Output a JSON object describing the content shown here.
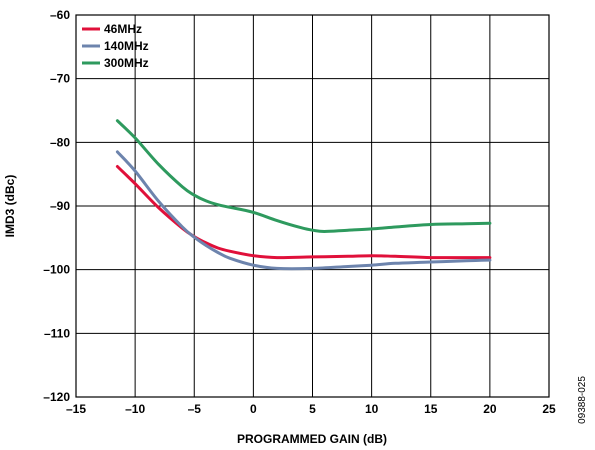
{
  "chart_data": {
    "type": "line",
    "xlabel": "PROGRAMMED GAIN (dB)",
    "ylabel": "IMD3 (dBc)",
    "xlim": [
      -15,
      25
    ],
    "ylim": [
      -120,
      -60
    ],
    "xticks": [
      -15,
      -10,
      -5,
      0,
      5,
      10,
      15,
      20,
      25
    ],
    "yticks": [
      -60,
      -70,
      -80,
      -90,
      -100,
      -110,
      -120
    ],
    "xtick_labels": [
      "–15",
      "–10",
      "–5",
      "0",
      "5",
      "10",
      "15",
      "20",
      "25"
    ],
    "ytick_labels": [
      "–60",
      "–70",
      "–80",
      "–90",
      "–100",
      "–110",
      "–120"
    ],
    "grid": true,
    "legend_position": "top-left",
    "figure_id": "09388-025",
    "series": [
      {
        "name": "46MHz",
        "color": "#e0103a",
        "x": [
          -11.5,
          -10,
          -8,
          -6,
          -5,
          -4,
          -3,
          -2,
          0,
          2,
          5,
          8,
          10,
          12,
          15,
          18,
          20
        ],
        "y": [
          -83.8,
          -86.5,
          -90.3,
          -93.5,
          -94.8,
          -95.8,
          -96.6,
          -97.1,
          -97.8,
          -98.1,
          -98.0,
          -97.9,
          -97.8,
          -97.9,
          -98.1,
          -98.1,
          -98.1
        ]
      },
      {
        "name": "140MHz",
        "color": "#6d84ad",
        "x": [
          -11.5,
          -10,
          -8,
          -6,
          -5,
          -4,
          -3,
          -2,
          0,
          2,
          5,
          8,
          10,
          12,
          15,
          18,
          20
        ],
        "y": [
          -81.5,
          -84.5,
          -89.3,
          -93.3,
          -94.9,
          -96.2,
          -97.3,
          -98.2,
          -99.3,
          -99.8,
          -99.8,
          -99.5,
          -99.3,
          -99.0,
          -98.8,
          -98.6,
          -98.5
        ]
      },
      {
        "name": "300MHz",
        "color": "#2e9a5e",
        "x": [
          -11.5,
          -10,
          -8,
          -6,
          -5,
          -4,
          -3,
          -2,
          0,
          2,
          4,
          5,
          6,
          8,
          10,
          12,
          15,
          18,
          20
        ],
        "y": [
          -76.6,
          -79.3,
          -83.5,
          -87.0,
          -88.3,
          -89.2,
          -89.8,
          -90.2,
          -91.0,
          -92.3,
          -93.4,
          -93.8,
          -94.0,
          -93.8,
          -93.6,
          -93.3,
          -92.9,
          -92.8,
          -92.7
        ]
      }
    ]
  }
}
